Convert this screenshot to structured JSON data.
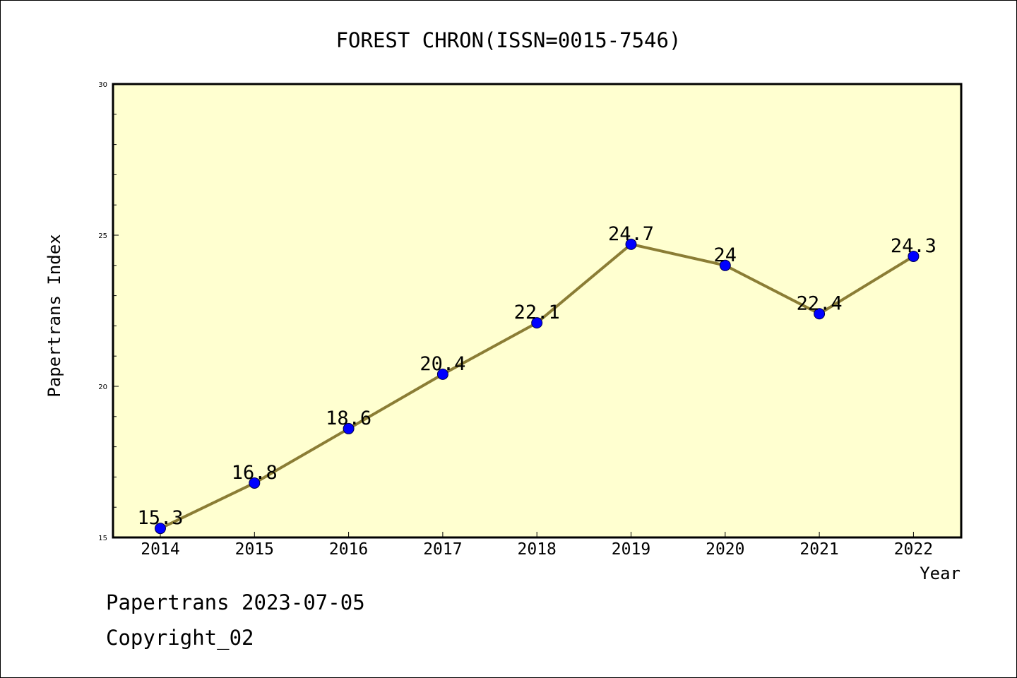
{
  "footer": {
    "line1": "Papertrans 2023-07-05",
    "line2": "Copyright_02"
  },
  "colors": {
    "plot_background": "#ffffd0",
    "line": "#8b7d35",
    "marker": "#0000ff"
  },
  "chart_data": {
    "type": "line",
    "title": "FOREST CHRON(ISSN=0015-7546)",
    "xlabel": "Year",
    "ylabel": "Papertrans Index",
    "categories": [
      "2014",
      "2015",
      "2016",
      "2017",
      "2018",
      "2019",
      "2020",
      "2021",
      "2022"
    ],
    "series": [
      {
        "values": [
          15.3,
          16.8,
          18.6,
          20.4,
          22.1,
          24.7,
          24.0,
          22.4,
          24.3
        ],
        "labels": [
          "15.3",
          "16.8",
          "18.6",
          "20.4",
          "22.1",
          "24.7",
          "24",
          "22.4",
          "24.3"
        ]
      }
    ],
    "ylim": [
      15,
      30
    ],
    "yticks": [
      "15",
      "20",
      "25",
      "30"
    ],
    "grid": false,
    "legend": "none"
  }
}
